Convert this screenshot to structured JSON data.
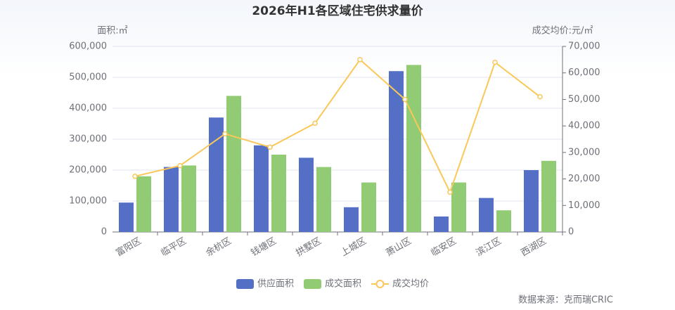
{
  "chart_data": {
    "type": "bar-line",
    "title": "2026年H1各区域住宅供求量价",
    "y_label": "面积:㎡",
    "y2_label": "成交均价:元/㎡",
    "source": "数据来源：克而瑞CRIC",
    "categories": [
      "富阳区",
      "临平区",
      "余杭区",
      "钱塘区",
      "拱墅区",
      "上城区",
      "萧山区",
      "临安区",
      "滨江区",
      "西湖区"
    ],
    "series": [
      {
        "name": "供应面积",
        "type": "bar",
        "color": "#5470c6",
        "values": [
          95000,
          210000,
          370000,
          280000,
          240000,
          80000,
          520000,
          50000,
          110000,
          200000
        ]
      },
      {
        "name": "成交面积",
        "type": "bar",
        "color": "#91cc75",
        "values": [
          180000,
          215000,
          440000,
          250000,
          210000,
          160000,
          540000,
          160000,
          70000,
          230000
        ]
      },
      {
        "name": "成交均价",
        "type": "line",
        "axis": "y2",
        "color": "#fac858",
        "values": [
          21000,
          25000,
          37000,
          32000,
          41000,
          65000,
          50000,
          15000,
          64000,
          51000
        ]
      }
    ],
    "ylim": [
      0,
      600000
    ],
    "yticks": [
      0,
      {
        "value": 100000,
        "label": "100,000"
      },
      {
        "value": 200000,
        "label": "200,000"
      },
      {
        "value": 300000,
        "label": "300,000"
      },
      {
        "value": 400000,
        "label": "400,000"
      },
      {
        "value": 500000,
        "label": "500,000"
      },
      {
        "value": 600000,
        "label": "600,000"
      }
    ],
    "y2lim": [
      0,
      70000
    ],
    "y2ticks": [
      0,
      {
        "value": 10000,
        "label": "10,000"
      },
      {
        "value": 20000,
        "label": "20,000"
      },
      {
        "value": 30000,
        "label": "30,000"
      },
      {
        "value": 40000,
        "label": "40,000"
      },
      {
        "value": 50000,
        "label": "50,000"
      },
      {
        "value": 60000,
        "label": "60,000"
      },
      {
        "value": 70000,
        "label": "70,000"
      }
    ],
    "grid": true,
    "legend": "bottom"
  }
}
